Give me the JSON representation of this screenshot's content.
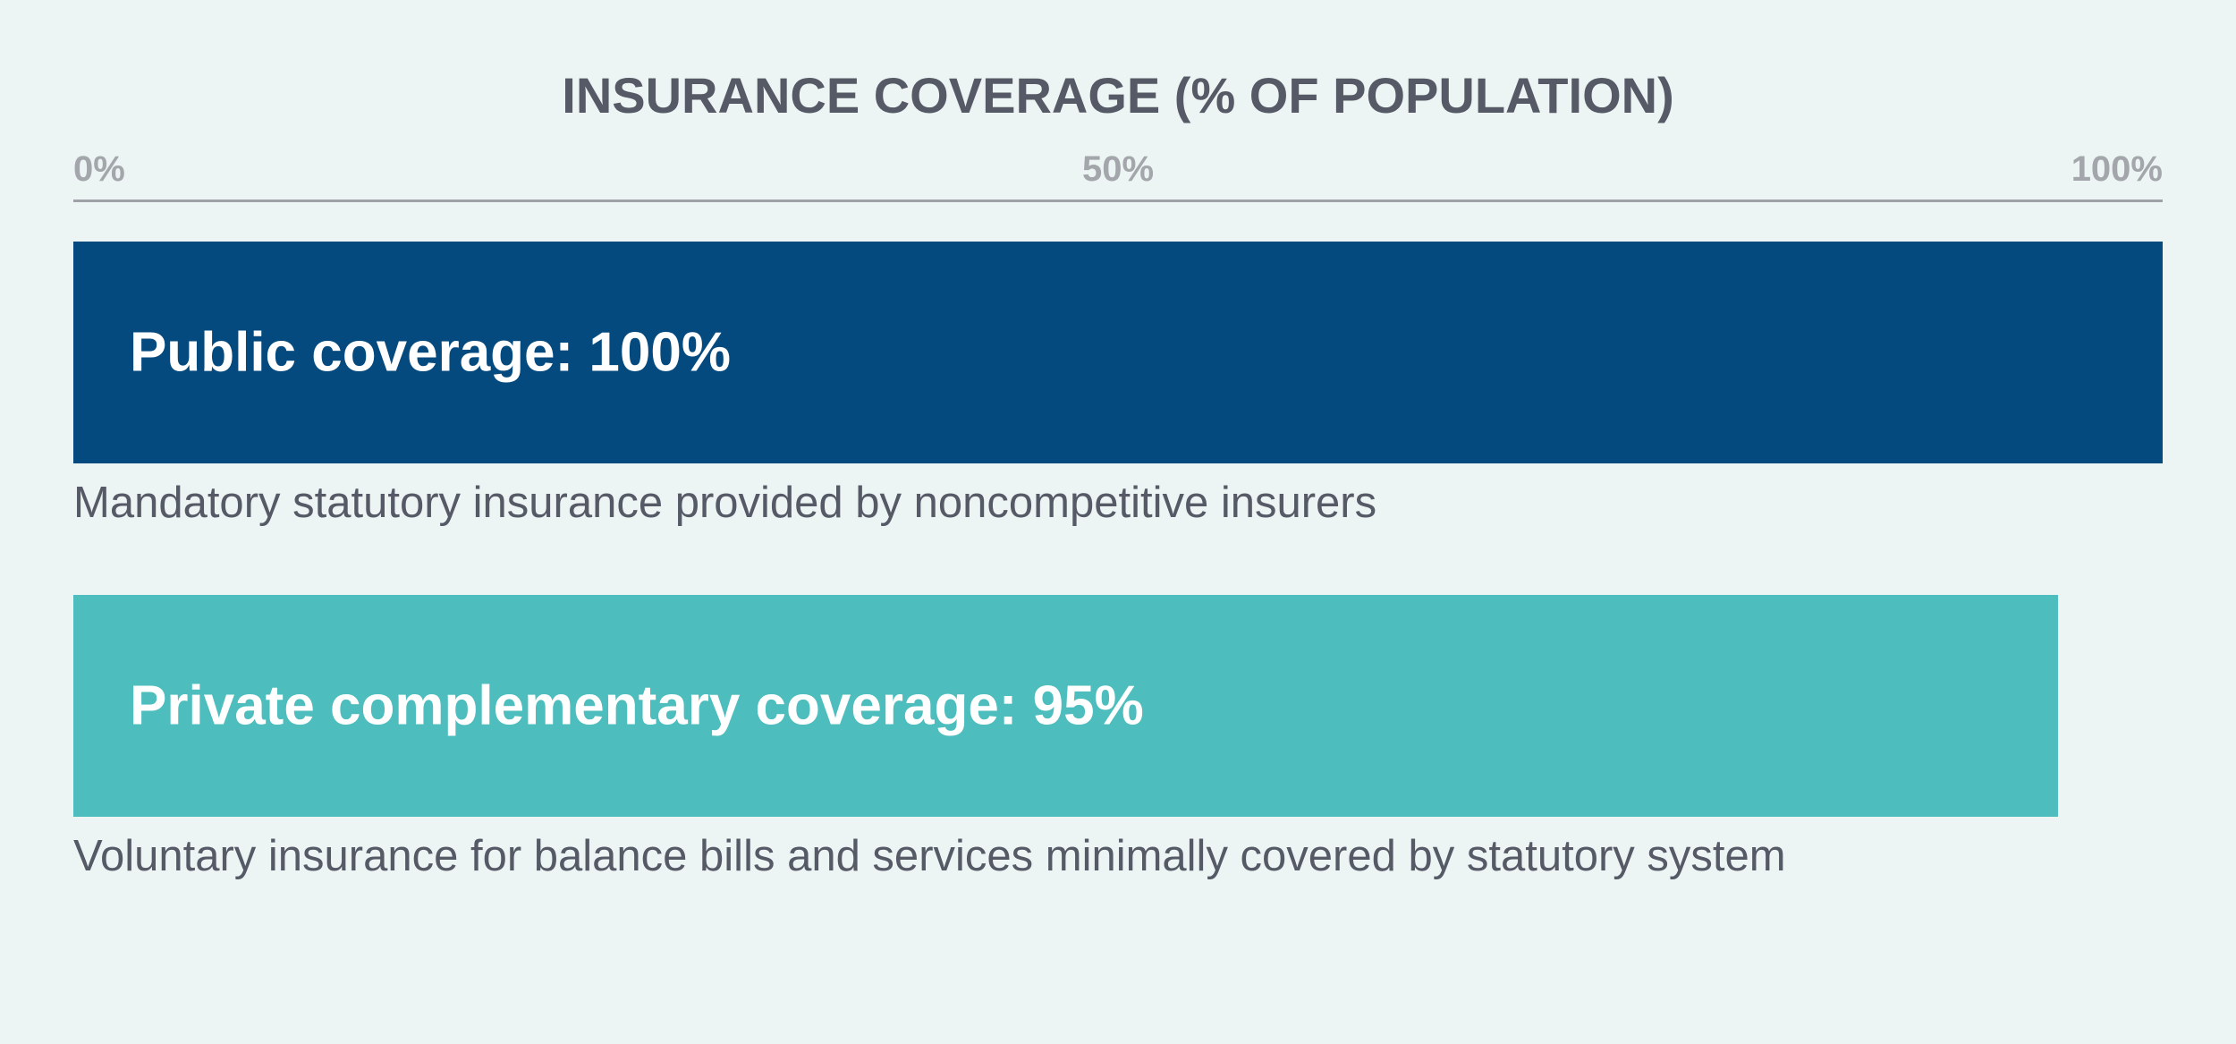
{
  "chart_data": {
    "type": "bar",
    "orientation": "horizontal",
    "title": "INSURANCE COVERAGE (% OF POPULATION)",
    "xlim": [
      0,
      100
    ],
    "x_ticks": [
      "0%",
      "50%",
      "100%"
    ],
    "categories": [
      "Public coverage",
      "Private complementary coverage"
    ],
    "values": [
      100,
      95
    ],
    "bar_labels": [
      "Public coverage: 100%",
      "Private complementary coverage: 95%"
    ],
    "descriptions": [
      "Mandatory statutory insurance provided by noncompetitive insurers",
      "Voluntary insurance for balance bills and services minimally covered by statutory system"
    ],
    "colors": [
      "#054a7e",
      "#4dbdbd"
    ],
    "grid": false,
    "legend": "none"
  }
}
